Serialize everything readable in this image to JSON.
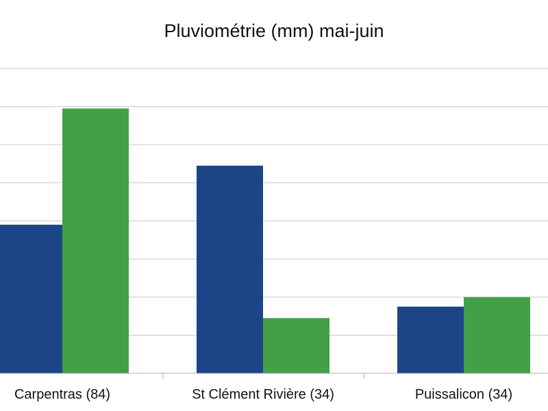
{
  "chart_data": {
    "type": "bar",
    "title": "Pluviométrie (mm) mai-juin",
    "xlabel": "",
    "ylabel": "",
    "categories": [
      "Carpentras (84)",
      "St Clément Rivière (34)",
      "Puissalicon (34)"
    ],
    "series": [
      {
        "values": [
          78,
          109,
          35
        ],
        "color": "#1c4587"
      },
      {
        "values": [
          139,
          29,
          40
        ],
        "color": "#43a047"
      }
    ],
    "ylim": [
      0,
      160
    ],
    "grid": true,
    "legend": "none"
  }
}
